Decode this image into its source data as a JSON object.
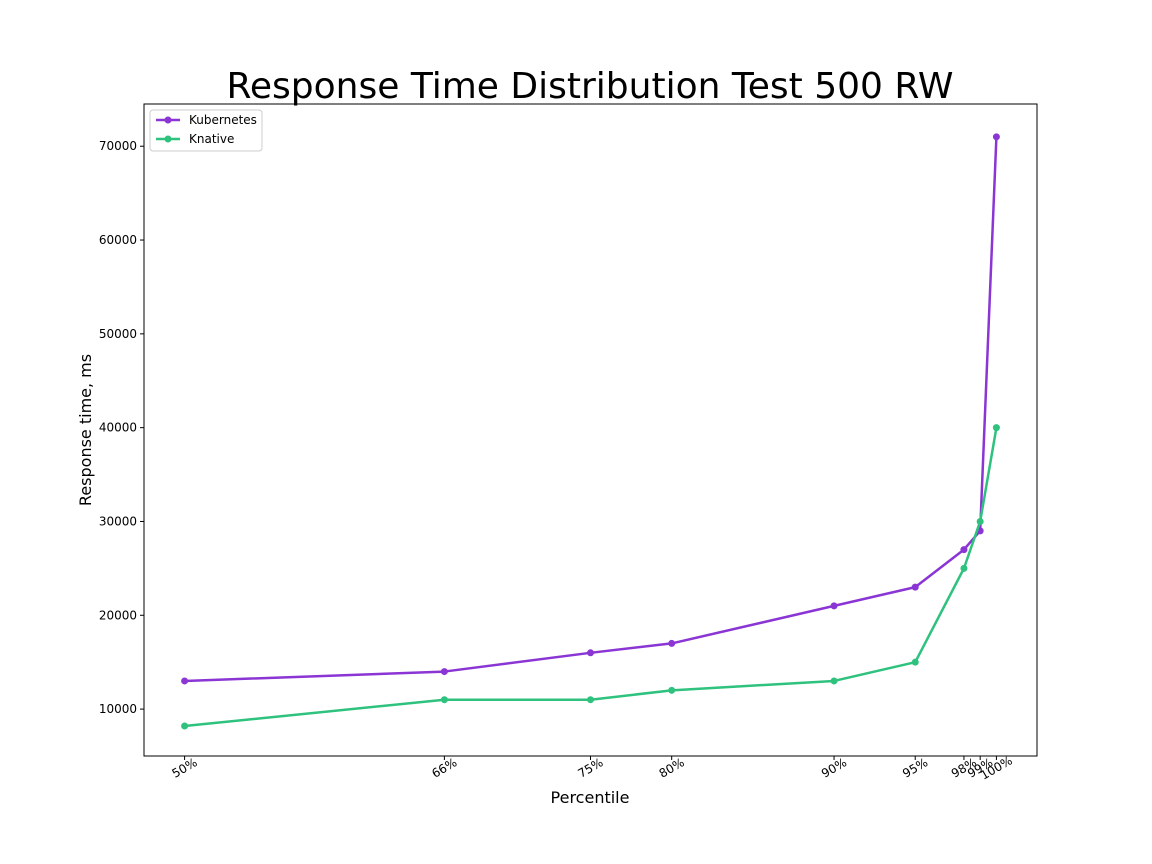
{
  "chart_data": {
    "type": "line",
    "title": "Response Time Distribution Test 500 RW",
    "xlabel": "Percentile",
    "ylabel": "Response time, ms",
    "x": [
      50,
      66,
      75,
      80,
      90,
      95,
      98,
      99,
      100
    ],
    "x_tick_labels": [
      "50%",
      "66%",
      "75%",
      "80%",
      "90%",
      "95%",
      "98%",
      "99%",
      "100%"
    ],
    "xlim": [
      47.5,
      102.5
    ],
    "ylim": [
      5000,
      74500
    ],
    "y_ticks": [
      10000,
      20000,
      30000,
      40000,
      50000,
      60000,
      70000
    ],
    "y_tick_labels": [
      "10000",
      "20000",
      "30000",
      "40000",
      "50000",
      "60000",
      "70000"
    ],
    "grid": false,
    "legend": "top-left",
    "series": [
      {
        "name": "Kubernetes",
        "color": "#8a35d4",
        "values": [
          13000,
          14000,
          16000,
          17000,
          21000,
          23000,
          27000,
          29000,
          71000
        ]
      },
      {
        "name": "Knative",
        "color": "#2ec27e",
        "values": [
          8200,
          11000,
          11000,
          12000,
          13000,
          15000,
          25000,
          30000,
          40000
        ]
      }
    ]
  }
}
